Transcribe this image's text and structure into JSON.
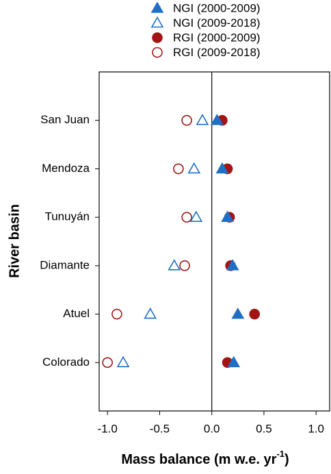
{
  "chart_data": {
    "type": "dot",
    "x_label": {
      "text": "Mass balance (m w.e. yr",
      "superscript": "-1",
      "suffix": ")"
    },
    "y_label": "River basin",
    "categories": [
      "San Juan",
      "Mendoza",
      "Tunuyán",
      "Diamante",
      "Atuel",
      "Colorado"
    ],
    "series": [
      {
        "name": "NGI (2000-2009)",
        "color": "#1f6fc4",
        "marker": "triangle",
        "filled": true,
        "values": [
          0.05,
          0.1,
          0.15,
          0.2,
          0.25,
          0.21
        ]
      },
      {
        "name": "NGI (2009-2018)",
        "color": "#1f6fc4",
        "marker": "triangle",
        "filled": false,
        "values": [
          -0.09,
          -0.17,
          -0.15,
          -0.36,
          -0.59,
          -0.85
        ]
      },
      {
        "name": "RGI (2000-2009)",
        "color": "#a31515",
        "marker": "circle",
        "filled": true,
        "values": [
          0.1,
          0.15,
          0.17,
          0.18,
          0.41,
          0.15
        ]
      },
      {
        "name": "RGI (2009-2018)",
        "color": "#a31515",
        "marker": "circle",
        "filled": false,
        "values": [
          -0.24,
          -0.32,
          -0.24,
          -0.26,
          -0.91,
          -1.0
        ]
      }
    ],
    "xlim": [
      -1.08,
      1.13
    ],
    "xticks": [
      {
        "value": -1,
        "label": "-1.0"
      },
      -0.5,
      {
        "value": 0,
        "label": "0.0"
      },
      0.5,
      {
        "value": 1,
        "label": "1.0"
      }
    ],
    "vline": 0,
    "legend": "top"
  }
}
